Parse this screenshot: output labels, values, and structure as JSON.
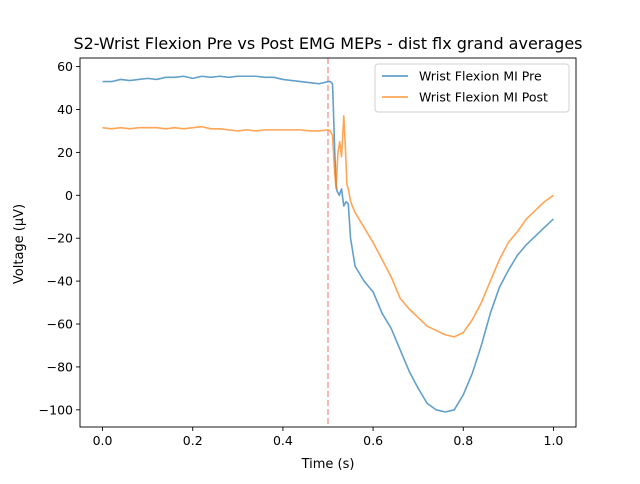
{
  "chart_data": {
    "type": "line",
    "title": "S2-Wrist Flexion Pre vs Post EMG MEPs - dist flx grand averages",
    "xlabel": "Time (s)",
    "ylabel": "Voltage (µV)",
    "xlim": [
      -0.05,
      1.05
    ],
    "ylim": [
      -108,
      64
    ],
    "xticks": [
      0.0,
      0.2,
      0.4,
      0.6,
      0.8,
      1.0
    ],
    "xtick_labels": [
      "0.0",
      "0.2",
      "0.4",
      "0.6",
      "0.8",
      "1.0"
    ],
    "yticks": [
      -100,
      -80,
      -60,
      -40,
      -20,
      0,
      20,
      40,
      60
    ],
    "ytick_labels": [
      "−100",
      "−80",
      "−60",
      "−40",
      "−20",
      "0",
      "20",
      "40",
      "60"
    ],
    "grid": false,
    "legend_position": "top-right",
    "vline": {
      "x": 0.5,
      "color": "#f4a9a0",
      "style": "dashed"
    },
    "series": [
      {
        "name": "Wrist Flexion MI Pre",
        "color": "#1f77b4",
        "x": [
          0.0,
          0.02,
          0.04,
          0.06,
          0.08,
          0.1,
          0.12,
          0.14,
          0.16,
          0.18,
          0.2,
          0.22,
          0.24,
          0.26,
          0.28,
          0.3,
          0.32,
          0.34,
          0.36,
          0.38,
          0.4,
          0.42,
          0.44,
          0.46,
          0.48,
          0.5,
          0.505,
          0.51,
          0.512,
          0.515,
          0.518,
          0.52,
          0.525,
          0.53,
          0.535,
          0.54,
          0.545,
          0.55,
          0.56,
          0.58,
          0.6,
          0.62,
          0.64,
          0.66,
          0.68,
          0.7,
          0.72,
          0.74,
          0.76,
          0.78,
          0.8,
          0.82,
          0.84,
          0.86,
          0.88,
          0.9,
          0.92,
          0.94,
          0.96,
          0.98,
          1.0
        ],
        "y": [
          53,
          53,
          54,
          53.5,
          54,
          54.5,
          54,
          55,
          55,
          55.5,
          54.5,
          55.5,
          55,
          55.5,
          55,
          55.5,
          55.5,
          55.5,
          55,
          55,
          54,
          53.5,
          53,
          52.5,
          52,
          53,
          53,
          52,
          40,
          20,
          5,
          2,
          0,
          3,
          -5,
          -3,
          -4,
          -20,
          -33,
          -40,
          -45,
          -55,
          -62,
          -72,
          -82,
          -90,
          -97,
          -100,
          -101,
          -100,
          -93,
          -83,
          -70,
          -55,
          -43,
          -35,
          -28,
          -23,
          -19,
          -15,
          -11
        ]
      },
      {
        "name": "Wrist Flexion MI Post",
        "color": "#ff7f0e",
        "x": [
          0.0,
          0.02,
          0.04,
          0.06,
          0.08,
          0.1,
          0.12,
          0.14,
          0.16,
          0.18,
          0.2,
          0.22,
          0.24,
          0.26,
          0.28,
          0.3,
          0.32,
          0.34,
          0.36,
          0.38,
          0.4,
          0.42,
          0.44,
          0.46,
          0.48,
          0.5,
          0.505,
          0.51,
          0.515,
          0.518,
          0.522,
          0.526,
          0.53,
          0.535,
          0.538,
          0.542,
          0.546,
          0.55,
          0.56,
          0.58,
          0.6,
          0.62,
          0.64,
          0.66,
          0.68,
          0.7,
          0.72,
          0.74,
          0.76,
          0.78,
          0.8,
          0.82,
          0.84,
          0.86,
          0.88,
          0.9,
          0.92,
          0.94,
          0.96,
          0.98,
          1.0
        ],
        "y": [
          31.5,
          31,
          31.5,
          31,
          31.5,
          31.5,
          31.5,
          31,
          31.5,
          31,
          31.5,
          32,
          31,
          31,
          30.5,
          30,
          30.5,
          30,
          30.5,
          30.5,
          30.5,
          30.5,
          30.5,
          30,
          30,
          30.5,
          30,
          28,
          10,
          3,
          20,
          25,
          18,
          37,
          25,
          5,
          2,
          -3,
          -8,
          -15,
          -22,
          -30,
          -38,
          -48,
          -53,
          -57,
          -61,
          -63,
          -65,
          -66,
          -64,
          -58,
          -50,
          -40,
          -30,
          -22,
          -17,
          -11,
          -7,
          -3,
          0
        ]
      }
    ]
  }
}
